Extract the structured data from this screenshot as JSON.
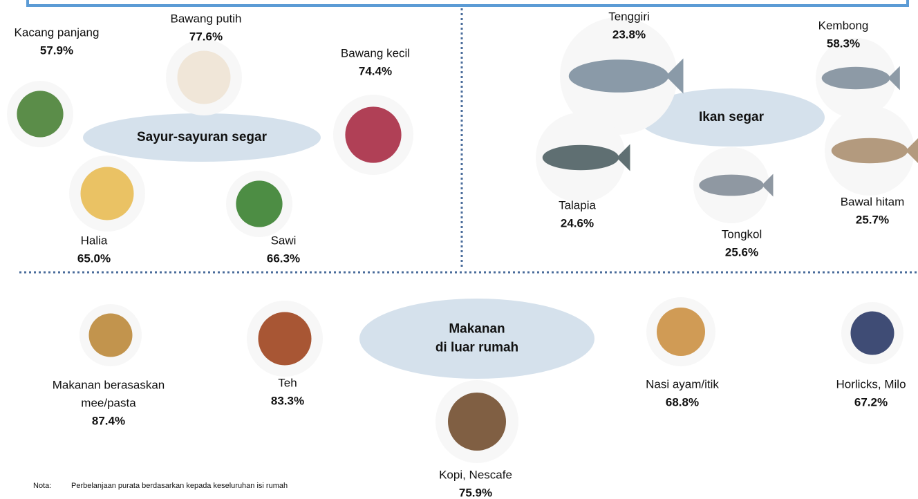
{
  "sections": [
    {
      "title": [
        "Sayur-sayuran segar"
      ],
      "items": [
        {
          "label": [
            "Kacang panjang"
          ],
          "value": "57.9%"
        },
        {
          "label": [
            "Bawang putih"
          ],
          "value": "77.6%"
        },
        {
          "label": [
            "Bawang kecil"
          ],
          "value": "74.4%"
        },
        {
          "label": [
            "Halia"
          ],
          "value": "65.0%"
        },
        {
          "label": [
            "Sawi"
          ],
          "value": "66.3%"
        }
      ]
    },
    {
      "title": [
        "Ikan segar"
      ],
      "items": [
        {
          "label": [
            "Tenggiri"
          ],
          "value": "23.8%"
        },
        {
          "label": [
            "Kembong"
          ],
          "value": "58.3%"
        },
        {
          "label": [
            "Talapia"
          ],
          "value": "24.6%"
        },
        {
          "label": [
            "Tongkol"
          ],
          "value": "25.6%"
        },
        {
          "label": [
            "Bawal hitam"
          ],
          "value": "25.7%"
        }
      ]
    },
    {
      "title": [
        "Makanan",
        "di  luar rumah"
      ],
      "items": [
        {
          "label": [
            "Makanan berasaskan",
            "mee/pasta"
          ],
          "value": "87.4%"
        },
        {
          "label": [
            "Teh"
          ],
          "value": "83.3%"
        },
        {
          "label": [
            "Kopi, Nescafe"
          ],
          "value": "75.9%"
        },
        {
          "label": [
            "Nasi ayam/itik"
          ],
          "value": "68.8%"
        },
        {
          "label": [
            "Horlicks, Milo"
          ],
          "value": "67.2%"
        }
      ]
    }
  ],
  "note": {
    "label": "Nota:",
    "text": "Perbelanjaan purata berdasarkan kepada keseluruhan isi rumah"
  }
}
